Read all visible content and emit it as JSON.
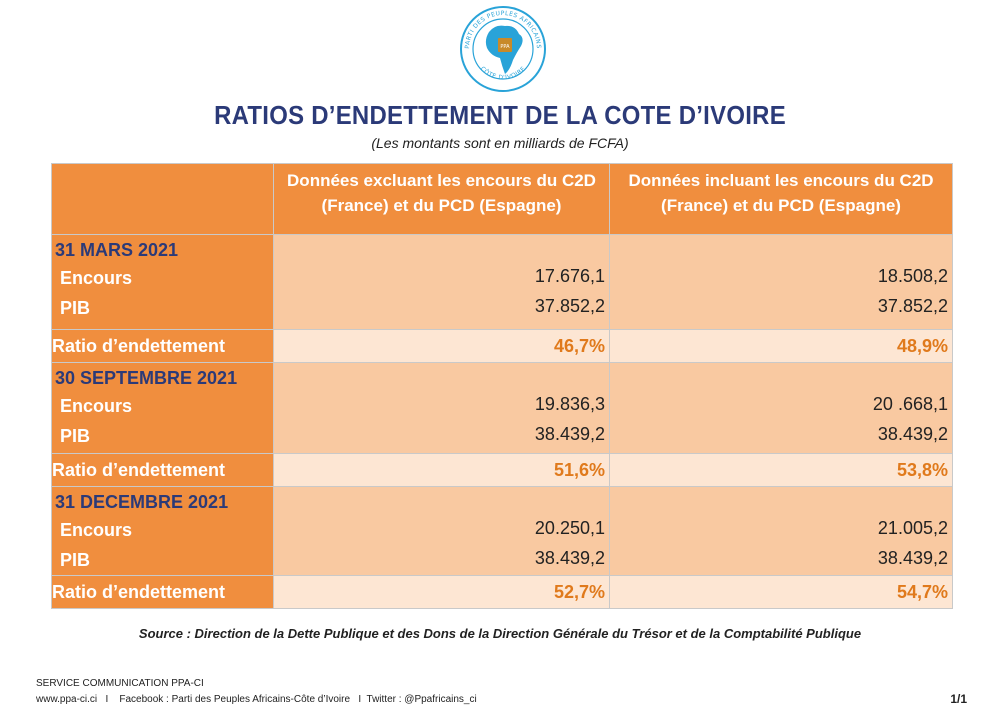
{
  "logo": {
    "ring_top_text": "PARTI DES PEUPLES AFRICAINS",
    "ring_bottom_text": "CÔTE D'IVOIRE",
    "center_text": "PPA"
  },
  "title": "RATIOS D’ENDETTEMENT DE LA COTE D’IVOIRE",
  "subtitle": "(Les montants sont en milliards de FCFA)",
  "table": {
    "col1_header": "Données excluant les encours du C2D (France) et du PCD (Espagne)",
    "col2_header": "Données incluant les encours du C2D (France) et du PCD (Espagne)",
    "periods": [
      {
        "title": "31 MARS 2021",
        "encours_label": "Encours",
        "pib_label": "PIB",
        "ratio_label": "Ratio d’endettement",
        "col1": {
          "encours": "17.676,1",
          "pib": "37.852,2",
          "ratio": "46,7%"
        },
        "col2": {
          "encours": "18.508,2",
          "pib": "37.852,2",
          "ratio": "48,9%"
        }
      },
      {
        "title": "30 SEPTEMBRE 2021",
        "encours_label": "Encours",
        "pib_label": "PIB",
        "ratio_label": "Ratio d’endettement",
        "col1": {
          "encours": "19.836,3",
          "pib": "38.439,2",
          "ratio": "51,6%"
        },
        "col2": {
          "encours": "20 .668,1",
          "pib": "38.439,2",
          "ratio": "53,8%"
        }
      },
      {
        "title": "31 DECEMBRE 2021",
        "encours_label": "Encours",
        "pib_label": "PIB",
        "ratio_label": "Ratio d’endettement",
        "col1": {
          "encours": "20.250,1",
          "pib": "38.439,2",
          "ratio": "52,7%"
        },
        "col2": {
          "encours": "21.005,2",
          "pib": "38.439,2",
          "ratio": "54,7%"
        }
      }
    ]
  },
  "source": "Source : Direction de la Dette Publique et des Dons de la Direction Générale du Trésor et de la Comptabilité Publique",
  "footer": {
    "line1": "SERVICE COMMUNICATION PPA-CI",
    "line2": "www.ppa-ci.ci   I    Facebook : Parti des Peuples Africains-Côte d’Ivoire   I  Twitter : @Ppafricains_ci",
    "page": "1/1"
  },
  "colors": {
    "orange": "#f08e3e",
    "peach": "#f9c9a1",
    "light_peach": "#fde6d3",
    "navy": "#2b3a78",
    "ratio_text": "#e07a1c"
  }
}
